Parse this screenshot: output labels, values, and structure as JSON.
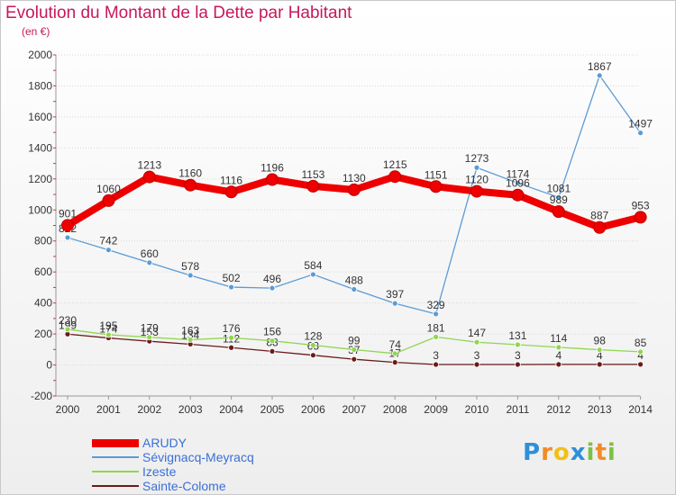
{
  "chart_data": {
    "type": "line",
    "title": "Evolution du Montant de la Dette par Habitant",
    "subtitle": "(en €)",
    "categories": [
      "2000",
      "2001",
      "2002",
      "2003",
      "2004",
      "2005",
      "2006",
      "2007",
      "2008",
      "2009",
      "2010",
      "2011",
      "2012",
      "2013",
      "2014"
    ],
    "ylim": [
      -200,
      2000
    ],
    "yticks": [
      -200,
      0,
      200,
      400,
      600,
      800,
      1000,
      1200,
      1400,
      1600,
      1800,
      2000
    ],
    "grid": true,
    "legend_position": "bottom-left",
    "series": [
      {
        "name": "ARUDY",
        "color": "#ee0000",
        "values": [
          901,
          1060,
          1213,
          1160,
          1116,
          1196,
          1153,
          1130,
          1215,
          1151,
          1120,
          1096,
          989,
          887,
          953
        ]
      },
      {
        "name": "Sévignacq-Meyracq",
        "color": "#5b9bd5",
        "values": [
          822,
          742,
          660,
          578,
          502,
          496,
          584,
          488,
          397,
          329,
          1273,
          1174,
          1081,
          1867,
          1497
        ]
      },
      {
        "name": "Izeste",
        "color": "#90d650",
        "values": [
          230,
          195,
          179,
          163,
          176,
          156,
          128,
          99,
          74,
          181,
          147,
          131,
          114,
          98,
          85
        ]
      },
      {
        "name": "Sainte-Colome",
        "color": "#6b1a1a",
        "values": [
          199,
          174,
          153,
          134,
          112,
          88,
          63,
          37,
          17,
          3,
          3,
          3,
          4,
          4,
          4
        ]
      }
    ]
  },
  "logo": {
    "letters": [
      "P",
      "r",
      "o",
      "x",
      "i",
      "t",
      "i"
    ],
    "colors": [
      "#2f8fd8",
      "#f28c28",
      "#f2c014",
      "#2f8fd8",
      "#7cc242",
      "#f28c28",
      "#7cc242"
    ]
  }
}
